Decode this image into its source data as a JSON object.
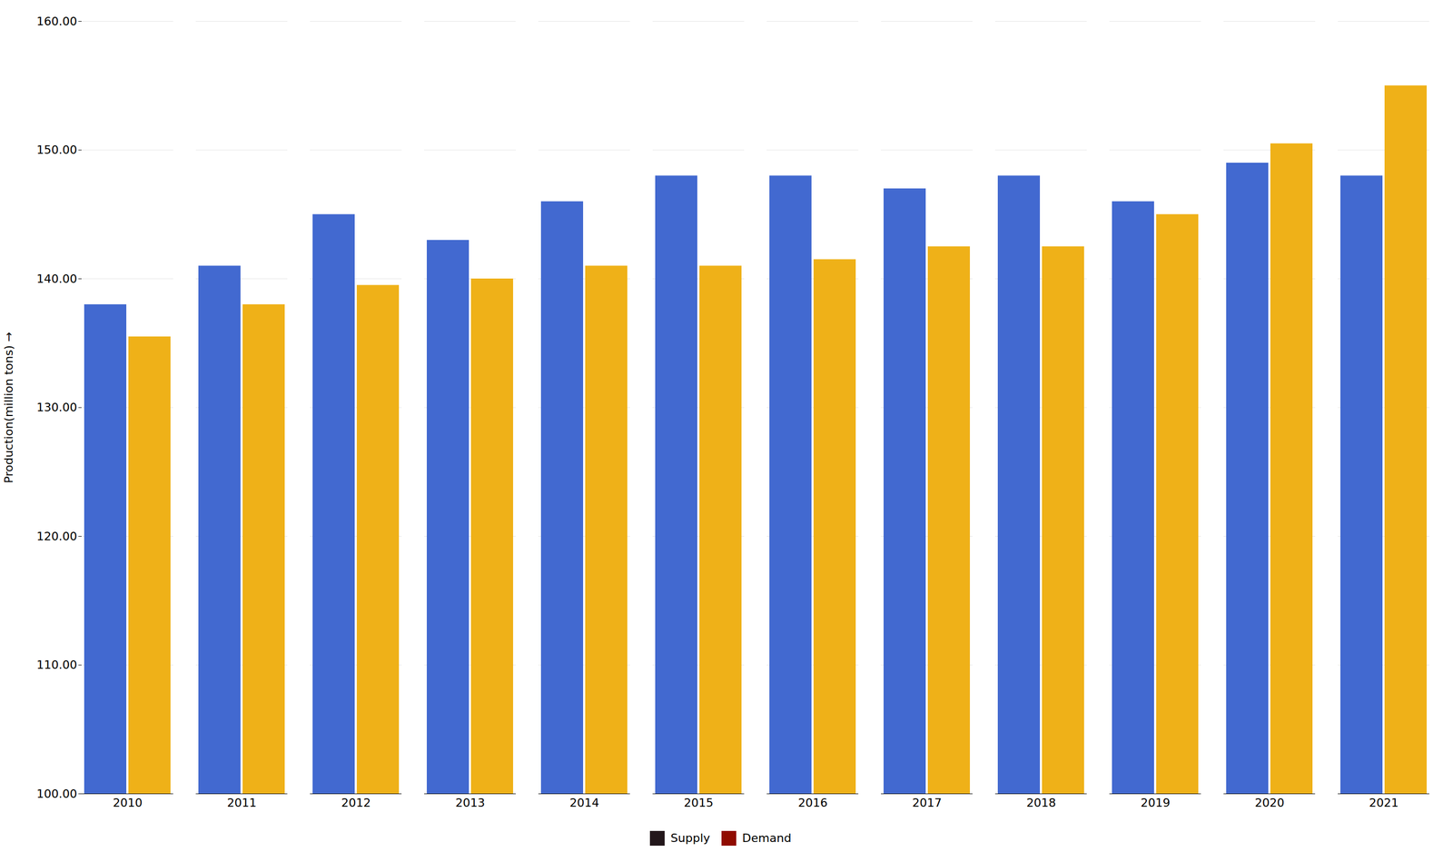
{
  "chart_data": {
    "type": "bar",
    "categories": [
      "2010",
      "2011",
      "2012",
      "2013",
      "2014",
      "2015",
      "2016",
      "2017",
      "2018",
      "2019",
      "2020",
      "2021"
    ],
    "series": [
      {
        "name": "Supply",
        "values": [
          138.0,
          141.0,
          145.0,
          143.0,
          146.0,
          148.0,
          148.0,
          147.0,
          148.0,
          146.0,
          149.0,
          148.0
        ]
      },
      {
        "name": "Demand",
        "values": [
          135.5,
          138.0,
          139.5,
          140.0,
          141.0,
          141.0,
          141.5,
          142.5,
          142.5,
          145.0,
          150.5,
          155.0
        ]
      }
    ],
    "y_label": "Production(million tons)",
    "ylim": [
      100.0,
      160.0
    ],
    "yticks": [
      {
        "value": 100.0,
        "label": "100.00"
      },
      {
        "value": 110.0,
        "label": "110.00"
      },
      {
        "value": 120.0,
        "label": "120.00"
      },
      {
        "value": 130.0,
        "label": "130.00"
      },
      {
        "value": 140.0,
        "label": "140.00"
      },
      {
        "value": 150.0,
        "label": "150.00"
      },
      {
        "value": 160.0,
        "label": "160.00"
      }
    ],
    "grid": true,
    "legend": "bottom"
  }
}
